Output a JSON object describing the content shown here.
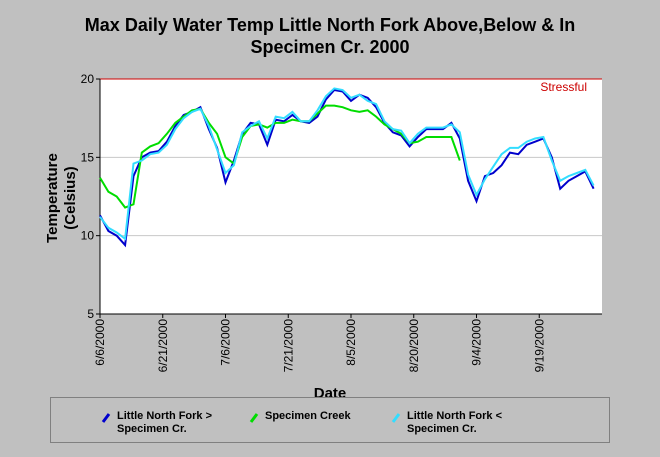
{
  "chart_data": {
    "type": "line",
    "title": "Max Daily Water Temp Little North Fork Above,Below & In Specimen Cr. 2000",
    "xlabel": "Date",
    "ylabel": "Temperature (Celsius)",
    "x": [
      "6/6/2000",
      "6/8/2000",
      "6/10/2000",
      "6/12/2000",
      "6/14/2000",
      "6/16/2000",
      "6/18/2000",
      "6/20/2000",
      "6/22/2000",
      "6/24/2000",
      "6/26/2000",
      "6/28/2000",
      "6/30/2000",
      "7/2/2000",
      "7/4/2000",
      "7/6/2000",
      "7/8/2000",
      "7/10/2000",
      "7/12/2000",
      "7/14/2000",
      "7/16/2000",
      "7/18/2000",
      "7/20/2000",
      "7/22/2000",
      "7/24/2000",
      "7/26/2000",
      "7/28/2000",
      "7/30/2000",
      "8/1/2000",
      "8/3/2000",
      "8/5/2000",
      "8/7/2000",
      "8/9/2000",
      "8/11/2000",
      "8/13/2000",
      "8/15/2000",
      "8/17/2000",
      "8/19/2000",
      "8/21/2000",
      "8/23/2000",
      "8/25/2000",
      "8/27/2000",
      "8/29/2000",
      "8/31/2000",
      "9/2/2000",
      "9/4/2000",
      "9/6/2000",
      "9/8/2000",
      "9/10/2000",
      "9/12/2000",
      "9/14/2000",
      "9/16/2000",
      "9/18/2000",
      "9/20/2000",
      "9/22/2000",
      "9/24/2000",
      "9/26/2000",
      "9/28/2000",
      "9/30/2000",
      "10/2/2000"
    ],
    "xlim": [
      "6/6/2000",
      "10/4/2000"
    ],
    "xticks": [
      "6/6/2000",
      "6/21/2000",
      "7/6/2000",
      "7/21/2000",
      "8/5/2000",
      "8/20/2000",
      "9/4/2000",
      "9/19/2000"
    ],
    "ylim": [
      5,
      20
    ],
    "yticks": [
      5,
      10,
      15,
      20
    ],
    "grid": true,
    "reference_line": {
      "label": "Stressful",
      "value": 20,
      "color": "#cc0000"
    },
    "series": [
      {
        "name": "Little North Fork > Specimen Cr.",
        "color": "#0000cc",
        "values": [
          11.3,
          10.3,
          10.0,
          9.4,
          13.8,
          15.0,
          15.3,
          15.4,
          16.0,
          17.0,
          17.7,
          17.9,
          18.2,
          16.8,
          15.6,
          13.4,
          14.8,
          16.5,
          17.2,
          17.1,
          15.8,
          17.4,
          17.3,
          17.7,
          17.3,
          17.2,
          17.6,
          18.7,
          19.3,
          19.2,
          18.6,
          19.0,
          18.8,
          18.2,
          17.2,
          16.6,
          16.4,
          15.7,
          16.3,
          16.8,
          16.8,
          16.8,
          17.2,
          16.2,
          13.5,
          12.2,
          13.8,
          14.0,
          14.5,
          15.3,
          15.2,
          15.8,
          16.0,
          16.2,
          15.0,
          13.0,
          13.5,
          13.8,
          14.1,
          13.0
        ]
      },
      {
        "name": "Specimen Creek",
        "color": "#00dd00",
        "values": [
          13.7,
          12.8,
          12.5,
          11.8,
          12.0,
          15.3,
          15.7,
          15.9,
          16.5,
          17.2,
          17.6,
          18.0,
          18.1,
          17.2,
          16.5,
          15.0,
          14.6,
          16.3,
          17.0,
          17.1,
          16.9,
          17.2,
          17.2,
          17.4,
          17.3,
          17.3,
          17.8,
          18.3,
          18.3,
          18.2,
          18.0,
          17.9,
          18.0,
          17.6,
          17.1,
          16.8,
          16.5,
          15.9,
          16.0,
          16.3,
          16.3,
          16.3,
          16.3,
          14.8,
          null,
          null,
          null,
          null,
          null,
          null,
          null,
          null,
          null,
          null,
          null,
          null,
          null,
          null,
          null,
          null
        ]
      },
      {
        "name": "Little North Fork < Specimen Cr.",
        "color": "#33ddff",
        "values": [
          11.2,
          10.5,
          10.2,
          9.8,
          14.6,
          14.8,
          15.2,
          15.3,
          15.8,
          16.8,
          17.5,
          17.9,
          18.1,
          17.0,
          15.5,
          14.0,
          14.5,
          16.6,
          17.0,
          17.3,
          16.2,
          17.6,
          17.5,
          17.9,
          17.3,
          17.3,
          18.0,
          18.9,
          19.4,
          19.3,
          18.8,
          19.0,
          18.6,
          18.4,
          17.3,
          16.8,
          16.7,
          15.9,
          16.5,
          16.9,
          16.9,
          16.9,
          17.1,
          16.6,
          13.9,
          12.6,
          13.6,
          14.4,
          15.2,
          15.6,
          15.6,
          16.0,
          16.2,
          16.3,
          14.8,
          13.5,
          13.8,
          14.0,
          14.2,
          13.2
        ]
      }
    ]
  }
}
